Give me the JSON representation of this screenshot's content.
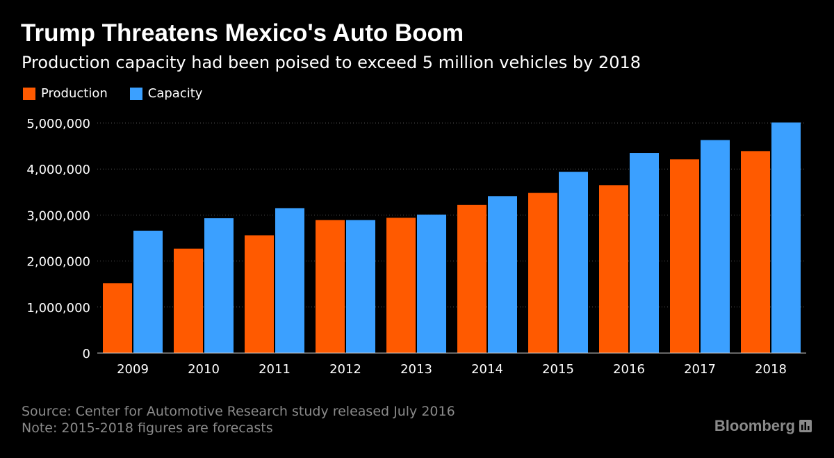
{
  "header": {
    "title": "Trump Threatens Mexico's Auto Boom",
    "subtitle": "Production capacity had been poised to exceed 5 million vehicles by 2018"
  },
  "footer": {
    "source": "Source: Center for Automotive Research study released July 2016",
    "note": "Note: 2015-2018 figures are forecasts",
    "brand": "Bloomberg"
  },
  "icons": {
    "brand_icon": "bloomberg-bars-icon"
  },
  "chart_data": {
    "type": "bar",
    "categories": [
      "2009",
      "2010",
      "2011",
      "2012",
      "2013",
      "2014",
      "2015",
      "2016",
      "2017",
      "2018"
    ],
    "series": [
      {
        "name": "Production",
        "color": "#ff5a00",
        "values": [
          1520000,
          2270000,
          2560000,
          2890000,
          2940000,
          3220000,
          3480000,
          3650000,
          4210000,
          4390000
        ]
      },
      {
        "name": "Capacity",
        "color": "#3ba0ff",
        "values": [
          2660000,
          2930000,
          3150000,
          2890000,
          3010000,
          3410000,
          3940000,
          4350000,
          4630000,
          5010000
        ]
      }
    ],
    "yticks": [
      0,
      1000000,
      2000000,
      3000000,
      4000000,
      5000000
    ],
    "ytick_labels": [
      "0",
      "1,000,000",
      "2,000,000",
      "3,000,000",
      "4,000,000",
      "5,000,000"
    ],
    "ylim": [
      0,
      5000000
    ],
    "grid": true,
    "legend_position": "top-left",
    "xlabel": "",
    "ylabel": ""
  }
}
